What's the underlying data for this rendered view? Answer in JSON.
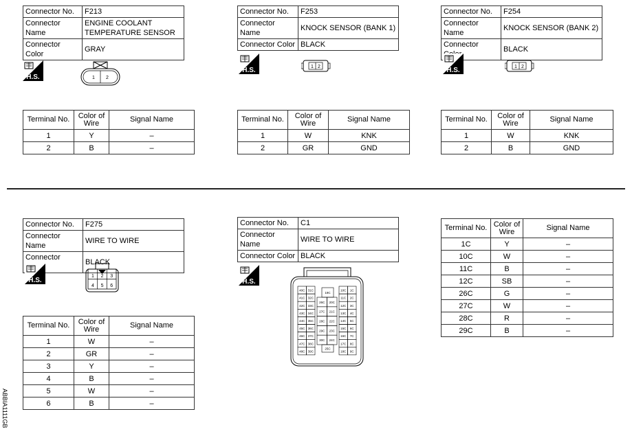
{
  "labels": {
    "connector_no": "Connector No.",
    "connector_name": "Connector Name",
    "connector_color": "Connector Color",
    "terminal_no": "Terminal No.",
    "color_of_wire": "Color of Wire",
    "signal_name": "Signal Name",
    "hs": "H.S."
  },
  "connectors": [
    {
      "no": "F213",
      "name": "ENGINE COOLANT TEMPERATURE SENSOR",
      "color": "GRAY",
      "terminals": [
        [
          "1",
          "Y",
          "–"
        ],
        [
          "2",
          "B",
          "–"
        ]
      ]
    },
    {
      "no": "F253",
      "name": "KNOCK SENSOR (BANK 1)",
      "color": "BLACK",
      "terminals": [
        [
          "1",
          "W",
          "KNK"
        ],
        [
          "2",
          "GR",
          "GND"
        ]
      ]
    },
    {
      "no": "F254",
      "name": "KNOCK SENSOR (BANK 2)",
      "color": "BLACK",
      "terminals": [
        [
          "1",
          "W",
          "KNK"
        ],
        [
          "2",
          "B",
          "GND"
        ]
      ]
    },
    {
      "no": "F275",
      "name": "WIRE TO WIRE",
      "color": "BLACK",
      "terminals": [
        [
          "1",
          "W",
          "–"
        ],
        [
          "2",
          "GR",
          "–"
        ],
        [
          "3",
          "Y",
          "–"
        ],
        [
          "4",
          "B",
          "–"
        ],
        [
          "5",
          "W",
          "–"
        ],
        [
          "6",
          "B",
          "–"
        ]
      ]
    },
    {
      "no": "C1",
      "name": "WIRE TO WIRE",
      "color": "BLACK",
      "terminals": [
        [
          "1C",
          "Y",
          "–"
        ],
        [
          "10C",
          "W",
          "–"
        ],
        [
          "11C",
          "B",
          "–"
        ],
        [
          "12C",
          "SB",
          "–"
        ],
        [
          "26C",
          "G",
          "–"
        ],
        [
          "27C",
          "W",
          "–"
        ],
        [
          "28C",
          "R",
          "–"
        ],
        [
          "29C",
          "B",
          "–"
        ]
      ]
    }
  ],
  "pins_2": [
    "1",
    "2"
  ],
  "pins_6": [
    "1",
    "2",
    "3",
    "4",
    "5",
    "6"
  ],
  "c1_pins": {
    "left": [
      [
        "40C",
        "31C"
      ],
      [
        "41C",
        "32C"
      ],
      [
        "42C",
        "33C"
      ],
      [
        "43C",
        "34C"
      ],
      [
        "44C",
        "35C"
      ],
      [
        "45C",
        "36C"
      ],
      [
        "46C",
        "37C"
      ],
      [
        "47C",
        "38C"
      ],
      [
        "48C",
        "39C"
      ]
    ],
    "right": [
      [
        "10C",
        "1C"
      ],
      [
        "11C",
        "2C"
      ],
      [
        "12C",
        "3C"
      ],
      [
        "13C",
        "4C"
      ],
      [
        "14C",
        "5C"
      ],
      [
        "15C",
        "6C"
      ],
      [
        "16C",
        "7C"
      ],
      [
        "17C",
        "8C"
      ],
      [
        "18C",
        "9C"
      ]
    ],
    "mid_top": "19C",
    "mid": [
      [
        "26C",
        "20C"
      ],
      [
        "27C",
        "21C"
      ],
      [
        "28C",
        "22C"
      ],
      [
        "29C",
        "23C"
      ],
      [
        "30C",
        "24C"
      ]
    ],
    "mid_bottom": "25C"
  },
  "figure_id": "ABBIA1111GB"
}
